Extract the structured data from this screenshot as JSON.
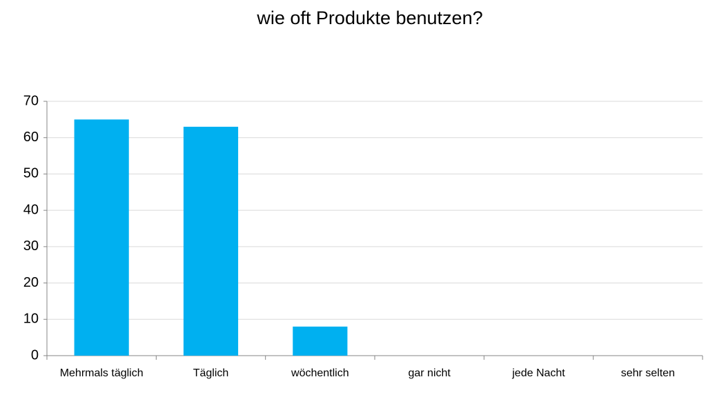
{
  "chart_data": {
    "type": "bar",
    "title": "wie oft Produkte benutzen?",
    "categories": [
      "Mehrmals täglich",
      "Täglich",
      "wöchentlich",
      "gar nicht",
      "jede Nacht",
      "sehr selten"
    ],
    "values": [
      65,
      63,
      8,
      0,
      0,
      0
    ],
    "color": "#00b0f0",
    "ylim": [
      0,
      70
    ],
    "yticks": [
      0,
      10,
      20,
      30,
      40,
      50,
      60,
      70
    ],
    "grid": true
  }
}
